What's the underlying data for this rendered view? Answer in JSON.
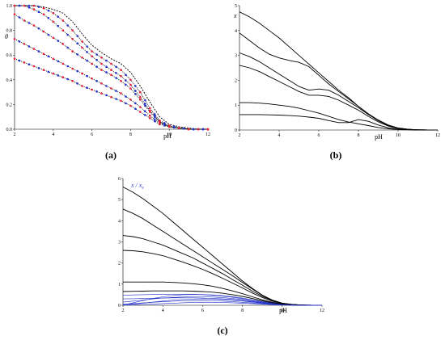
{
  "figure": {
    "panel_labels": [
      "(a)",
      "(b)",
      "(c)"
    ]
  },
  "chart_data": [
    {
      "type": "line",
      "panel": "(a)",
      "xlabel": "pH",
      "ylabel": "θ",
      "xlim": [
        2,
        12
      ],
      "ylim": [
        0,
        1
      ],
      "x_ticks": [
        2,
        4,
        6,
        8,
        10,
        12
      ],
      "y_ticks": [
        "0.0",
        "0.2",
        "0.4",
        "0.6",
        "0.8",
        "1.0"
      ],
      "x": [
        2,
        2.5,
        3,
        3.5,
        4,
        4.5,
        5,
        5.5,
        6,
        6.5,
        7,
        7.5,
        8,
        8.5,
        9,
        9.5,
        10,
        10.5,
        11,
        11.5,
        12
      ],
      "series": [
        {
          "style": "dashed",
          "color": "#000000",
          "values": [
            1.0,
            1.0,
            1.0,
            0.99,
            0.97,
            0.94,
            0.87,
            0.77,
            0.68,
            0.62,
            0.57,
            0.53,
            0.46,
            0.35,
            0.22,
            0.1,
            0.04,
            0.02,
            0.01,
            0.0,
            0.0
          ]
        },
        {
          "style": "dotted",
          "color": "#000000",
          "markers": true,
          "values": [
            1.0,
            1.0,
            1.0,
            0.98,
            0.94,
            0.88,
            0.8,
            0.71,
            0.63,
            0.58,
            0.53,
            0.48,
            0.4,
            0.3,
            0.17,
            0.07,
            0.03,
            0.01,
            0.0,
            0.0,
            0.0
          ]
        },
        {
          "style": "dotted",
          "color": "#000000",
          "markers": true,
          "values": [
            1.0,
            1.0,
            0.97,
            0.93,
            0.87,
            0.8,
            0.73,
            0.66,
            0.59,
            0.53,
            0.48,
            0.43,
            0.36,
            0.26,
            0.15,
            0.06,
            0.02,
            0.01,
            0.0,
            0.0,
            0.0
          ]
        },
        {
          "style": "dotted",
          "color": "#000000",
          "markers": true,
          "values": [
            0.93,
            0.88,
            0.84,
            0.79,
            0.74,
            0.69,
            0.63,
            0.58,
            0.53,
            0.48,
            0.44,
            0.39,
            0.33,
            0.24,
            0.14,
            0.06,
            0.02,
            0.01,
            0.0,
            0.0,
            0.0
          ]
        },
        {
          "style": "dotted",
          "color": "#000000",
          "markers": true,
          "values": [
            0.73,
            0.69,
            0.65,
            0.61,
            0.57,
            0.53,
            0.49,
            0.45,
            0.41,
            0.37,
            0.33,
            0.29,
            0.24,
            0.18,
            0.11,
            0.05,
            0.02,
            0.01,
            0.0,
            0.0,
            0.0
          ]
        },
        {
          "style": "dotted",
          "color": "#000000",
          "markers": true,
          "values": [
            0.57,
            0.54,
            0.51,
            0.48,
            0.45,
            0.42,
            0.39,
            0.35,
            0.32,
            0.29,
            0.26,
            0.23,
            0.19,
            0.14,
            0.09,
            0.04,
            0.02,
            0.01,
            0.0,
            0.0,
            0.0
          ]
        }
      ],
      "marker_colors": [
        "#e8203a",
        "#1f33d6"
      ]
    },
    {
      "type": "line",
      "panel": "(b)",
      "xlabel": "pH",
      "ylabel": "x",
      "xlim": [
        2,
        12
      ],
      "ylim": [
        0,
        5
      ],
      "x_ticks": [
        2,
        4,
        6,
        8,
        10,
        12
      ],
      "y_ticks": [
        "0",
        "1",
        "2",
        "3",
        "4",
        "5"
      ],
      "x": [
        2,
        2.5,
        3,
        3.5,
        4,
        4.5,
        5,
        5.5,
        6,
        6.5,
        7,
        7.5,
        8,
        8.5,
        9,
        9.5,
        10,
        10.5,
        11,
        11.5,
        12
      ],
      "series": [
        {
          "color": "#000000",
          "values": [
            4.75,
            4.55,
            4.3,
            4.0,
            3.7,
            3.35,
            3.0,
            2.65,
            2.3,
            1.95,
            1.6,
            1.3,
            0.95,
            0.65,
            0.4,
            0.2,
            0.08,
            0.03,
            0.01,
            0.0,
            0.0
          ]
        },
        {
          "color": "#000000",
          "values": [
            3.9,
            3.6,
            3.3,
            3.05,
            2.9,
            2.8,
            2.72,
            2.55,
            2.2,
            1.85,
            1.55,
            1.25,
            0.95,
            0.65,
            0.4,
            0.2,
            0.08,
            0.03,
            0.01,
            0.0,
            0.0
          ]
        },
        {
          "color": "#000000",
          "values": [
            3.1,
            2.95,
            2.75,
            2.5,
            2.25,
            2.0,
            1.75,
            1.6,
            1.65,
            1.6,
            1.4,
            1.15,
            0.9,
            0.62,
            0.38,
            0.18,
            0.07,
            0.03,
            0.01,
            0.0,
            0.0
          ]
        },
        {
          "color": "#000000",
          "values": [
            2.6,
            2.5,
            2.35,
            2.15,
            1.95,
            1.75,
            1.55,
            1.4,
            1.4,
            1.35,
            1.2,
            1.0,
            0.8,
            0.55,
            0.33,
            0.16,
            0.06,
            0.02,
            0.01,
            0.0,
            0.0
          ]
        },
        {
          "color": "#000000",
          "values": [
            1.1,
            1.1,
            1.08,
            1.05,
            1.0,
            0.95,
            0.88,
            0.78,
            0.68,
            0.55,
            0.42,
            0.32,
            0.25,
            0.18,
            0.1,
            0.05,
            0.02,
            0.01,
            0.0,
            0.0,
            0.0
          ]
        },
        {
          "color": "#000000",
          "values": [
            0.62,
            0.62,
            0.62,
            0.61,
            0.6,
            0.58,
            0.56,
            0.52,
            0.47,
            0.38,
            0.3,
            0.3,
            0.42,
            0.35,
            0.2,
            0.09,
            0.03,
            0.01,
            0.0,
            0.0,
            0.0
          ]
        }
      ]
    },
    {
      "type": "line",
      "panel": "(c)",
      "xlabel": "pH",
      "ylabel": "x / x",
      "ylabel_subscript": "s",
      "xlim": [
        2,
        12
      ],
      "ylim": [
        0,
        6
      ],
      "x_ticks": [
        2,
        4,
        6,
        8,
        10,
        12
      ],
      "y_ticks": [
        "0",
        "1",
        "2",
        "3",
        "4",
        "5",
        "6"
      ],
      "x": [
        2,
        2.5,
        3,
        3.5,
        4,
        4.5,
        5,
        5.5,
        6,
        6.5,
        7,
        7.5,
        8,
        8.5,
        9,
        9.5,
        10,
        10.5,
        11,
        11.5,
        12
      ],
      "series": [
        {
          "color": "#000000",
          "values": [
            5.6,
            5.35,
            5.05,
            4.7,
            4.35,
            3.95,
            3.55,
            3.15,
            2.75,
            2.35,
            1.95,
            1.55,
            1.15,
            0.8,
            0.48,
            0.25,
            0.1,
            0.04,
            0.01,
            0.0,
            0.0
          ]
        },
        {
          "color": "#000000",
          "values": [
            4.55,
            4.35,
            4.1,
            3.8,
            3.5,
            3.2,
            2.9,
            2.6,
            2.3,
            2.0,
            1.7,
            1.4,
            1.08,
            0.77,
            0.47,
            0.24,
            0.1,
            0.04,
            0.01,
            0.0,
            0.0
          ]
        },
        {
          "color": "#000000",
          "values": [
            3.3,
            3.25,
            3.15,
            3.0,
            2.85,
            2.65,
            2.45,
            2.25,
            2.0,
            1.75,
            1.5,
            1.22,
            0.95,
            0.67,
            0.42,
            0.22,
            0.09,
            0.03,
            0.01,
            0.0,
            0.0
          ]
        },
        {
          "color": "#000000",
          "values": [
            2.6,
            2.58,
            2.53,
            2.45,
            2.35,
            2.2,
            2.05,
            1.88,
            1.7,
            1.5,
            1.28,
            1.05,
            0.82,
            0.58,
            0.37,
            0.19,
            0.08,
            0.03,
            0.01,
            0.0,
            0.0
          ]
        },
        {
          "color": "#000000",
          "values": [
            1.1,
            1.1,
            1.1,
            1.1,
            1.1,
            1.08,
            1.06,
            1.02,
            0.97,
            0.9,
            0.8,
            0.68,
            0.55,
            0.4,
            0.26,
            0.14,
            0.06,
            0.02,
            0.01,
            0.0,
            0.0
          ]
        },
        {
          "color": "#000000",
          "values": [
            0.65,
            0.66,
            0.67,
            0.68,
            0.68,
            0.68,
            0.68,
            0.67,
            0.65,
            0.62,
            0.57,
            0.5,
            0.42,
            0.32,
            0.21,
            0.11,
            0.05,
            0.02,
            0.0,
            0.0,
            0.0
          ]
        },
        {
          "color": "#1f2fc8",
          "values": [
            0.48,
            0.49,
            0.5,
            0.51,
            0.52,
            0.52,
            0.52,
            0.52,
            0.51,
            0.49,
            0.46,
            0.41,
            0.34,
            0.26,
            0.17,
            0.09,
            0.04,
            0.01,
            0.0,
            0.0,
            0.0
          ]
        },
        {
          "color": "#1f2fc8",
          "values": [
            0.02,
            0.12,
            0.22,
            0.32,
            0.4,
            0.46,
            0.5,
            0.51,
            0.5,
            0.47,
            0.43,
            0.38,
            0.31,
            0.23,
            0.15,
            0.08,
            0.03,
            0.01,
            0.0,
            0.0,
            0.0
          ]
        },
        {
          "color": "#1f2fc8",
          "values": [
            0.15,
            0.2,
            0.25,
            0.3,
            0.34,
            0.37,
            0.39,
            0.4,
            0.4,
            0.39,
            0.36,
            0.32,
            0.27,
            0.2,
            0.13,
            0.07,
            0.03,
            0.01,
            0.0,
            0.0,
            0.0
          ]
        },
        {
          "color": "#1f2fc8",
          "values": [
            0.3,
            0.31,
            0.32,
            0.33,
            0.34,
            0.35,
            0.35,
            0.35,
            0.34,
            0.32,
            0.3,
            0.27,
            0.22,
            0.17,
            0.11,
            0.06,
            0.02,
            0.01,
            0.0,
            0.0,
            0.0
          ]
        },
        {
          "color": "#1f2fc8",
          "values": [
            0.0,
            0.05,
            0.1,
            0.15,
            0.2,
            0.24,
            0.27,
            0.29,
            0.3,
            0.29,
            0.27,
            0.24,
            0.2,
            0.15,
            0.1,
            0.05,
            0.02,
            0.01,
            0.0,
            0.0,
            0.0
          ]
        },
        {
          "color": "#1f2fc8",
          "values": [
            0.05,
            0.08,
            0.11,
            0.14,
            0.17,
            0.19,
            0.21,
            0.22,
            0.22,
            0.21,
            0.2,
            0.17,
            0.14,
            0.11,
            0.07,
            0.04,
            0.02,
            0.0,
            0.0,
            0.0,
            0.0
          ]
        },
        {
          "color": "#1f2fc8",
          "values": [
            0.0,
            0.02,
            0.04,
            0.06,
            0.08,
            0.1,
            0.12,
            0.13,
            0.14,
            0.14,
            0.13,
            0.12,
            0.1,
            0.08,
            0.05,
            0.03,
            0.01,
            0.0,
            0.0,
            0.0,
            0.0
          ]
        }
      ]
    }
  ]
}
